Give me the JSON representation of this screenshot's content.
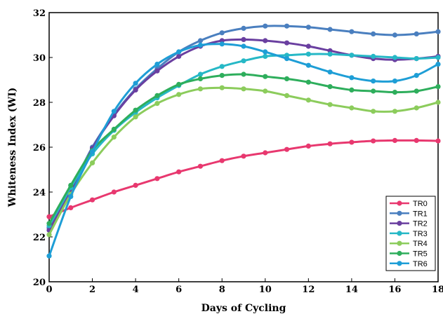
{
  "chart_data": {
    "type": "line",
    "xlabel": "Days of Cycling",
    "ylabel": "Whiteness Index (WI)",
    "xlim": [
      0,
      18
    ],
    "ylim": [
      20,
      32
    ],
    "xticks": [
      "0",
      "2",
      "4",
      "6",
      "8",
      "10",
      "12",
      "14",
      "16",
      "18"
    ],
    "yticks": [
      "20",
      "22",
      "24",
      "26",
      "28",
      "30",
      "32"
    ],
    "grid": false,
    "legend_position": "bottom-right",
    "x": [
      0,
      1,
      2,
      3,
      4,
      5,
      6,
      7,
      8,
      9,
      10,
      11,
      12,
      13,
      14,
      15,
      16,
      17,
      18
    ],
    "series": [
      {
        "name": "TR0",
        "color": "#e8386f",
        "values": [
          22.9,
          23.3,
          23.65,
          24.0,
          24.3,
          24.6,
          24.9,
          25.15,
          25.4,
          25.6,
          25.75,
          25.9,
          26.05,
          26.15,
          26.22,
          26.28,
          26.3,
          26.3,
          26.28
        ]
      },
      {
        "name": "TR1",
        "color": "#4a7fbf",
        "values": [
          22.4,
          24.1,
          26.0,
          27.45,
          28.6,
          29.5,
          30.25,
          30.75,
          31.1,
          31.3,
          31.4,
          31.4,
          31.35,
          31.25,
          31.15,
          31.05,
          31.0,
          31.05,
          31.15
        ]
      },
      {
        "name": "TR2",
        "color": "#6a3fa0",
        "values": [
          22.3,
          24.0,
          25.95,
          27.4,
          28.55,
          29.4,
          30.05,
          30.5,
          30.75,
          30.8,
          30.75,
          30.65,
          30.5,
          30.3,
          30.1,
          29.95,
          29.9,
          29.95,
          30.05
        ]
      },
      {
        "name": "TR3",
        "color": "#26b8c6",
        "values": [
          22.5,
          24.2,
          25.7,
          26.75,
          27.55,
          28.2,
          28.75,
          29.25,
          29.6,
          29.85,
          30.05,
          30.1,
          30.15,
          30.15,
          30.1,
          30.05,
          30.0,
          29.95,
          30.0
        ]
      },
      {
        "name": "TR4",
        "color": "#8ccc5c",
        "values": [
          22.1,
          23.9,
          25.3,
          26.45,
          27.35,
          27.95,
          28.35,
          28.6,
          28.65,
          28.6,
          28.5,
          28.3,
          28.1,
          27.9,
          27.75,
          27.6,
          27.6,
          27.75,
          28.0
        ]
      },
      {
        "name": "TR5",
        "color": "#2eae5c",
        "values": [
          22.6,
          24.3,
          25.85,
          26.8,
          27.65,
          28.3,
          28.8,
          29.05,
          29.2,
          29.25,
          29.15,
          29.05,
          28.9,
          28.7,
          28.55,
          28.5,
          28.45,
          28.5,
          28.7
        ]
      },
      {
        "name": "TR6",
        "color": "#1e9ed6",
        "values": [
          21.15,
          23.8,
          25.8,
          27.6,
          28.85,
          29.7,
          30.25,
          30.55,
          30.6,
          30.5,
          30.25,
          29.95,
          29.65,
          29.35,
          29.1,
          28.95,
          28.95,
          29.2,
          29.7
        ]
      }
    ]
  }
}
